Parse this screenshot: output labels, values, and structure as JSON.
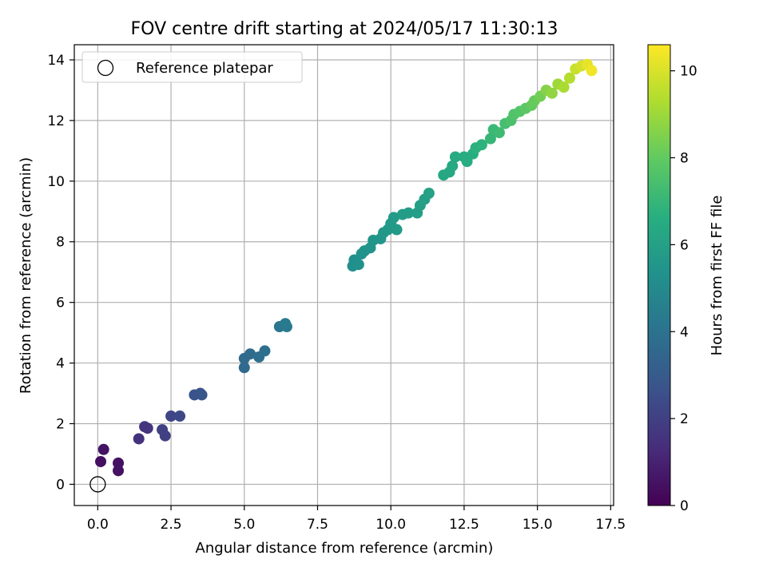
{
  "chart_data": {
    "type": "scatter",
    "title": "FOV centre drift starting at 2024/05/17 11:30:13",
    "xlabel": "Angular distance from reference (arcmin)",
    "ylabel": "Rotation from reference (arcmin)",
    "xlim": [
      -0.8,
      17.6
    ],
    "ylim": [
      -0.7,
      14.5
    ],
    "xticks": [
      0.0,
      2.5,
      5.0,
      7.5,
      10.0,
      12.5,
      15.0,
      17.5
    ],
    "xtick_labels": [
      "0.0",
      "2.5",
      "5.0",
      "7.5",
      "10.0",
      "12.5",
      "15.0",
      "17.5"
    ],
    "yticks": [
      0,
      2,
      4,
      6,
      8,
      10,
      12,
      14
    ],
    "ytick_labels": [
      "0",
      "2",
      "4",
      "6",
      "8",
      "10",
      "12",
      "14"
    ],
    "grid": true,
    "legend": {
      "position": "upper-left",
      "entries": [
        "Reference platepar"
      ]
    },
    "reference_point": {
      "x": 0.0,
      "y": 0.0,
      "label": "Reference platepar"
    },
    "colorbar": {
      "label": "Hours from first FF file",
      "colormap": "viridis",
      "range": [
        0,
        10.6
      ],
      "ticks": [
        0,
        2,
        4,
        6,
        8,
        10
      ],
      "tick_labels": [
        "0",
        "2",
        "4",
        "6",
        "8",
        "10"
      ]
    },
    "points": [
      {
        "x": 0.2,
        "y": 1.15,
        "c": 0.55
      },
      {
        "x": 0.1,
        "y": 0.75,
        "c": 0.45
      },
      {
        "x": 0.7,
        "y": 0.7,
        "c": 0.5
      },
      {
        "x": 0.7,
        "y": 0.45,
        "c": 0.5
      },
      {
        "x": 1.4,
        "y": 1.5,
        "c": 1.5
      },
      {
        "x": 1.6,
        "y": 1.9,
        "c": 1.6
      },
      {
        "x": 1.7,
        "y": 1.85,
        "c": 1.6
      },
      {
        "x": 2.2,
        "y": 1.8,
        "c": 2.0
      },
      {
        "x": 2.3,
        "y": 1.6,
        "c": 2.0
      },
      {
        "x": 2.5,
        "y": 2.25,
        "c": 2.2
      },
      {
        "x": 2.8,
        "y": 2.25,
        "c": 2.3
      },
      {
        "x": 3.3,
        "y": 2.95,
        "c": 2.7
      },
      {
        "x": 3.5,
        "y": 3.0,
        "c": 2.8
      },
      {
        "x": 3.55,
        "y": 2.95,
        "c": 2.8
      },
      {
        "x": 5.0,
        "y": 3.85,
        "c": 3.6
      },
      {
        "x": 5.0,
        "y": 4.15,
        "c": 3.65
      },
      {
        "x": 5.2,
        "y": 4.3,
        "c": 3.7
      },
      {
        "x": 5.5,
        "y": 4.2,
        "c": 3.8
      },
      {
        "x": 5.7,
        "y": 4.4,
        "c": 3.9
      },
      {
        "x": 6.2,
        "y": 5.2,
        "c": 4.2
      },
      {
        "x": 6.4,
        "y": 5.3,
        "c": 4.3
      },
      {
        "x": 6.45,
        "y": 5.2,
        "c": 4.3
      },
      {
        "x": 8.7,
        "y": 7.2,
        "c": 5.2
      },
      {
        "x": 8.75,
        "y": 7.4,
        "c": 5.25
      },
      {
        "x": 8.9,
        "y": 7.25,
        "c": 5.3
      },
      {
        "x": 9.0,
        "y": 7.6,
        "c": 5.35
      },
      {
        "x": 9.1,
        "y": 7.7,
        "c": 5.4
      },
      {
        "x": 9.3,
        "y": 7.8,
        "c": 5.45
      },
      {
        "x": 9.4,
        "y": 8.05,
        "c": 5.5
      },
      {
        "x": 9.65,
        "y": 8.1,
        "c": 5.55
      },
      {
        "x": 9.75,
        "y": 8.3,
        "c": 5.6
      },
      {
        "x": 9.9,
        "y": 8.4,
        "c": 5.6
      },
      {
        "x": 10.0,
        "y": 8.6,
        "c": 5.65
      },
      {
        "x": 10.2,
        "y": 8.4,
        "c": 5.7
      },
      {
        "x": 10.1,
        "y": 8.8,
        "c": 5.75
      },
      {
        "x": 10.4,
        "y": 8.9,
        "c": 5.8
      },
      {
        "x": 10.6,
        "y": 8.95,
        "c": 5.85
      },
      {
        "x": 10.9,
        "y": 8.95,
        "c": 5.9
      },
      {
        "x": 11.0,
        "y": 9.2,
        "c": 5.95
      },
      {
        "x": 11.15,
        "y": 9.4,
        "c": 6.0
      },
      {
        "x": 11.3,
        "y": 9.6,
        "c": 6.05
      },
      {
        "x": 11.8,
        "y": 10.2,
        "c": 6.3
      },
      {
        "x": 12.0,
        "y": 10.3,
        "c": 6.35
      },
      {
        "x": 12.1,
        "y": 10.5,
        "c": 6.4
      },
      {
        "x": 12.2,
        "y": 10.8,
        "c": 6.45
      },
      {
        "x": 12.5,
        "y": 10.8,
        "c": 6.5
      },
      {
        "x": 12.6,
        "y": 10.65,
        "c": 6.55
      },
      {
        "x": 12.8,
        "y": 10.9,
        "c": 6.6
      },
      {
        "x": 12.9,
        "y": 11.1,
        "c": 6.7
      },
      {
        "x": 13.1,
        "y": 11.2,
        "c": 6.75
      },
      {
        "x": 13.4,
        "y": 11.4,
        "c": 7.0
      },
      {
        "x": 13.5,
        "y": 11.7,
        "c": 7.1
      },
      {
        "x": 13.7,
        "y": 11.6,
        "c": 7.2
      },
      {
        "x": 13.9,
        "y": 11.9,
        "c": 7.35
      },
      {
        "x": 14.1,
        "y": 12.0,
        "c": 7.5
      },
      {
        "x": 14.2,
        "y": 12.2,
        "c": 7.6
      },
      {
        "x": 14.4,
        "y": 12.3,
        "c": 7.7
      },
      {
        "x": 14.6,
        "y": 12.4,
        "c": 7.85
      },
      {
        "x": 14.8,
        "y": 12.5,
        "c": 8.0
      },
      {
        "x": 14.9,
        "y": 12.65,
        "c": 8.1
      },
      {
        "x": 15.1,
        "y": 12.8,
        "c": 8.3
      },
      {
        "x": 15.3,
        "y": 13.0,
        "c": 8.6
      },
      {
        "x": 15.5,
        "y": 12.9,
        "c": 8.8
      },
      {
        "x": 15.7,
        "y": 13.2,
        "c": 9.0
      },
      {
        "x": 15.9,
        "y": 13.1,
        "c": 9.2
      },
      {
        "x": 16.1,
        "y": 13.4,
        "c": 9.4
      },
      {
        "x": 16.3,
        "y": 13.7,
        "c": 9.7
      },
      {
        "x": 16.5,
        "y": 13.8,
        "c": 9.9
      },
      {
        "x": 16.7,
        "y": 13.85,
        "c": 10.2
      },
      {
        "x": 16.85,
        "y": 13.65,
        "c": 10.4
      }
    ]
  }
}
